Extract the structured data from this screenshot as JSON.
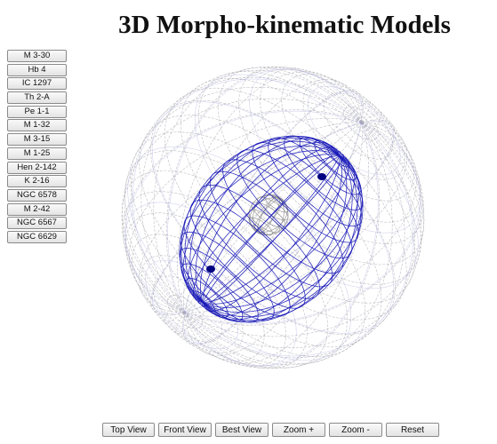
{
  "page": {
    "title": "3D Morpho-kinematic Models"
  },
  "objects": [
    {
      "label": "M 3-30"
    },
    {
      "label": "Hb 4"
    },
    {
      "label": "IC 1297"
    },
    {
      "label": "Th 2-A"
    },
    {
      "label": "Pe 1-1"
    },
    {
      "label": "M 1-32"
    },
    {
      "label": "M 3-15"
    },
    {
      "label": "M 1-25"
    },
    {
      "label": "Hen 2-142"
    },
    {
      "label": "K 2-16"
    },
    {
      "label": "NGC 6578"
    },
    {
      "label": "M 2-42"
    },
    {
      "label": "NGC 6567"
    },
    {
      "label": "NGC 6629"
    }
  ],
  "controls": {
    "top_view": "Top View",
    "front_view": "Front View",
    "best_view": "Best View",
    "zoom_in": "Zoom +",
    "zoom_out": "Zoom -",
    "reset": "Reset"
  },
  "colors": {
    "outer_shell": "#a9a9b2",
    "outer_shell_highlight": "#8a8ad0",
    "inner_shell": "#1a1ab8",
    "inner_pole": "#000080",
    "core": "#8f8f8f"
  }
}
